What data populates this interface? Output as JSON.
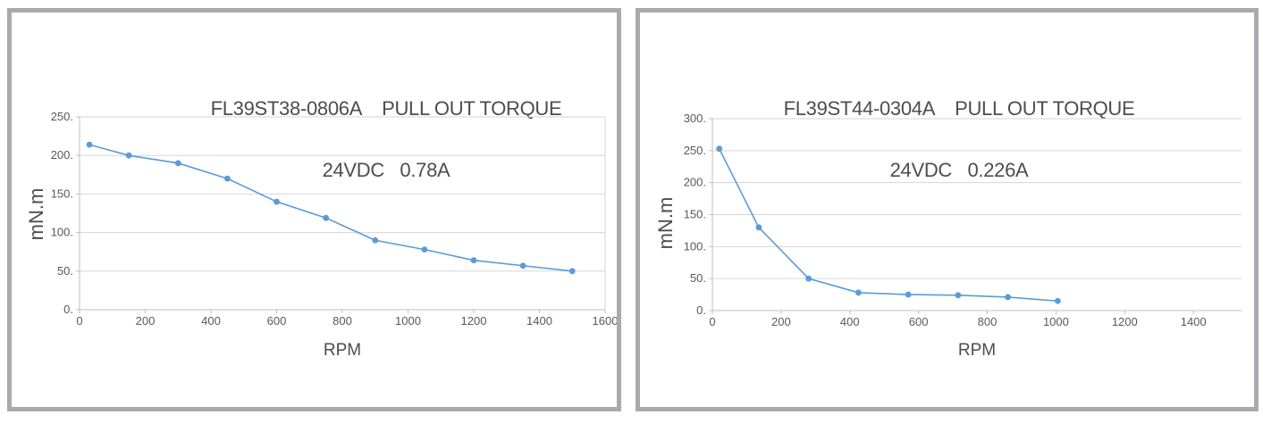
{
  "colors": {
    "series": "#5b9bd5",
    "gridline": "#d6d6d6",
    "axis": "#bfbfbf",
    "panel_border": "#a9a9ae",
    "tick_text": "#595959",
    "title_text": "#4d4d4d"
  },
  "chart_data": [
    {
      "type": "line",
      "title_line1": "FL39ST38-0806A    PULL OUT TORQUE",
      "title_line2": "24VDC   0.78A",
      "xlabel": "RPM",
      "ylabel": "mN.m",
      "xlim": [
        0,
        1600
      ],
      "ylim": [
        0,
        250
      ],
      "xticks": [
        0,
        200,
        400,
        600,
        800,
        1000,
        1200,
        1400,
        1600
      ],
      "xtick_labels": [
        "0",
        "200",
        "400",
        "600",
        "800",
        "1000",
        "1200",
        "1400",
        "1600"
      ],
      "yticks": [
        0,
        50,
        100,
        150,
        200,
        250
      ],
      "ytick_labels": [
        "0.",
        "50.",
        "100.",
        "150.",
        "200.",
        "250."
      ],
      "x": [
        30,
        150,
        300,
        450,
        600,
        750,
        900,
        1050,
        1200,
        1350,
        1500
      ],
      "y": [
        214,
        200,
        190,
        170,
        140,
        119,
        90,
        78,
        64,
        57,
        50
      ],
      "grid": "horizontal-only",
      "legend": "none",
      "marker": "circle"
    },
    {
      "type": "line",
      "title_line1": "FL39ST44-0304A    PULL OUT TORQUE",
      "title_line2": "24VDC   0.226A",
      "xlabel": "RPM",
      "ylabel": "mN.m",
      "xlim": [
        0,
        1540
      ],
      "ylim": [
        0,
        300
      ],
      "xticks": [
        0,
        200,
        400,
        600,
        800,
        1000,
        1200,
        1400
      ],
      "xtick_labels": [
        "0",
        "200",
        "400",
        "600",
        "800",
        "1000",
        "1200",
        "1400"
      ],
      "yticks": [
        0,
        50,
        100,
        150,
        200,
        250,
        300
      ],
      "ytick_labels": [
        "0.",
        "50.",
        "100.",
        "150.",
        "200.",
        "250.",
        "300."
      ],
      "x": [
        20,
        135,
        280,
        425,
        570,
        715,
        860,
        1005
      ],
      "y": [
        253,
        130,
        50,
        28,
        25,
        24,
        21,
        15
      ],
      "grid": "horizontal-only",
      "legend": "none",
      "marker": "circle"
    }
  ]
}
